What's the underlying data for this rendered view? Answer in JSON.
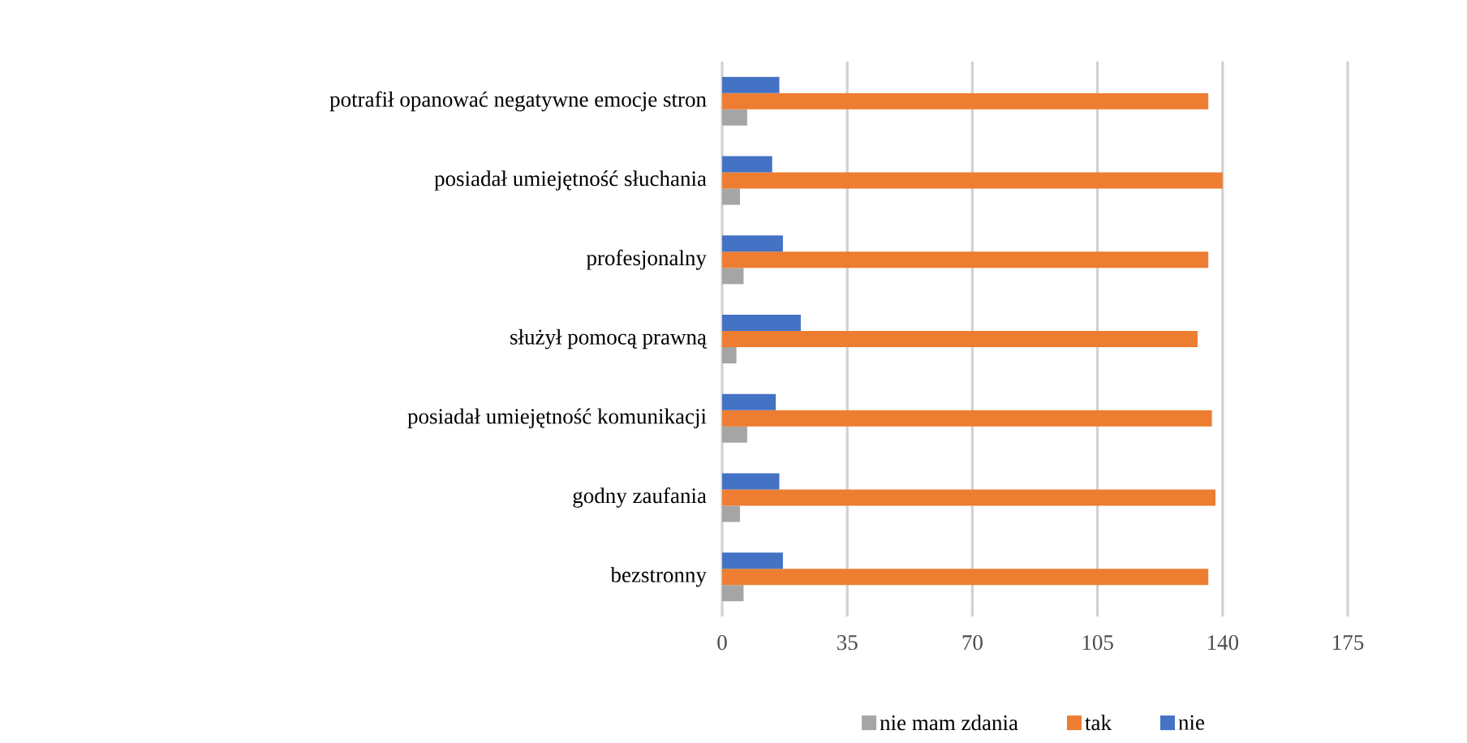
{
  "chart_data": {
    "type": "bar",
    "orientation": "horizontal",
    "categories": [
      "potrafił opanować negatywne emocje stron",
      "posiadał umiejętność słuchania",
      "profesjonalny",
      "służył pomocą prawną",
      "posiadał umiejętność komunikacji",
      "godny zaufania",
      "bezstronny"
    ],
    "series": [
      {
        "name": "nie mam zdania",
        "color": "#a5a5a5",
        "values": [
          7,
          5,
          6,
          4,
          7,
          5,
          6
        ]
      },
      {
        "name": "tak",
        "color": "#ed7d31",
        "values": [
          136,
          140,
          136,
          133,
          137,
          138,
          136
        ]
      },
      {
        "name": "nie",
        "color": "#4472c4",
        "values": [
          16,
          14,
          17,
          22,
          15,
          16,
          17
        ]
      }
    ],
    "xlim": [
      0,
      175
    ],
    "xticks": [
      0,
      35,
      70,
      105,
      140,
      175
    ],
    "grid": "x",
    "legend": "bottom"
  }
}
